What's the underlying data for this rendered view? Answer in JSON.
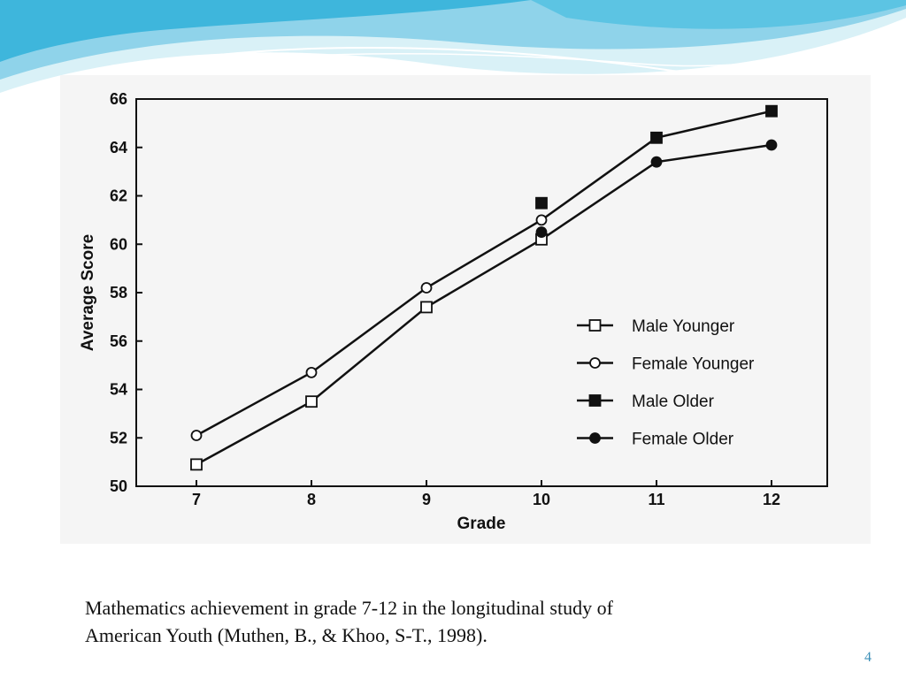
{
  "chart_data": {
    "type": "line",
    "title": "",
    "xlabel": "Grade",
    "ylabel": "Average Score",
    "x": [
      7,
      8,
      9,
      10,
      11,
      12
    ],
    "x_tick_labels": [
      "7",
      "8",
      "9",
      "10",
      "11",
      "12"
    ],
    "ylim": [
      50,
      66
    ],
    "y_ticks": [
      50,
      52,
      54,
      56,
      58,
      60,
      62,
      64,
      66
    ],
    "y_tick_labels": [
      "50",
      "52",
      "54",
      "56",
      "58",
      "60",
      "62",
      "64",
      "66"
    ],
    "grid": false,
    "legend_position": "bottom-right",
    "series": [
      {
        "name": "Male Younger",
        "marker": "square-open",
        "x": [
          7,
          8,
          9,
          10
        ],
        "values": [
          50.9,
          53.5,
          57.4,
          60.2
        ]
      },
      {
        "name": "Female Younger",
        "marker": "circle-open",
        "x": [
          7,
          8,
          9,
          10
        ],
        "values": [
          52.1,
          54.7,
          58.2,
          61.0
        ]
      },
      {
        "name": "Male Older",
        "marker": "square-filled",
        "x": [
          10,
          11,
          12
        ],
        "values": [
          61.7,
          64.4,
          65.5
        ]
      },
      {
        "name": "Female Older",
        "marker": "circle-filled",
        "x": [
          10,
          11,
          12
        ],
        "values": [
          60.5,
          63.4,
          64.1
        ]
      }
    ],
    "connected_lines": [
      {
        "x": [
          7,
          8,
          9,
          10,
          11,
          12
        ],
        "values": [
          50.9,
          53.5,
          57.4,
          60.2,
          63.4,
          64.1
        ]
      },
      {
        "x": [
          7,
          8,
          9,
          10,
          11,
          12
        ],
        "values": [
          52.1,
          54.7,
          58.2,
          61.0,
          64.4,
          65.5
        ]
      }
    ]
  },
  "caption": {
    "line1": "Mathematics achievement in grade 7-12 in the longitudinal study of",
    "line2": "American Youth (Muthen, B., &  Khoo, S-T., 1998)."
  },
  "slide_number": "4",
  "colors": {
    "wave_light": "#d9f1f7",
    "wave_mid": "#8fd3ea",
    "wave_dark": "#3eb6dc",
    "ink": "#111111",
    "slide_number": "#3a8fb7"
  }
}
